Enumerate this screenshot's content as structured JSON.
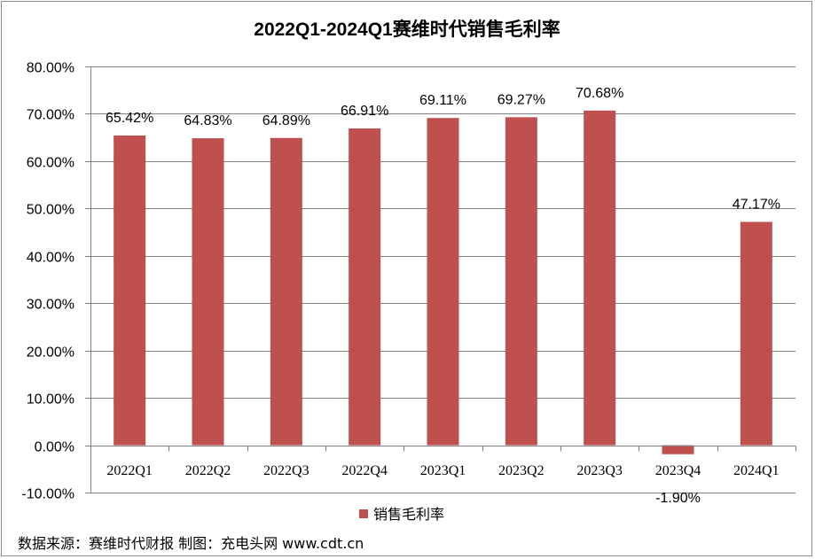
{
  "chart_data": {
    "type": "bar",
    "title": "2022Q1-2024Q1赛维时代销售毛利率",
    "categories": [
      "2022Q1",
      "2022Q2",
      "2022Q3",
      "2022Q4",
      "2023Q1",
      "2023Q2",
      "2023Q3",
      "2023Q4",
      "2024Q1"
    ],
    "series": [
      {
        "name": "销售毛利率",
        "values": [
          65.42,
          64.83,
          64.89,
          66.91,
          69.11,
          69.27,
          70.68,
          -1.9,
          47.17
        ],
        "labels": [
          "65.42%",
          "64.83%",
          "64.89%",
          "66.91%",
          "69.11%",
          "69.27%",
          "70.68%",
          "-1.90%",
          "47.17%"
        ],
        "color": "#c0504d"
      }
    ],
    "yticks": [
      "80.00%",
      "70.00%",
      "60.00%",
      "50.00%",
      "40.00%",
      "30.00%",
      "20.00%",
      "10.00%",
      "0.00%",
      "-10.00%"
    ],
    "ylim": [
      -10,
      80
    ],
    "grid": true,
    "legend_position": "bottom"
  },
  "footer": {
    "source_text": "数据来源：赛维时代财报 制图：充电头网 www.cdt.cn"
  }
}
